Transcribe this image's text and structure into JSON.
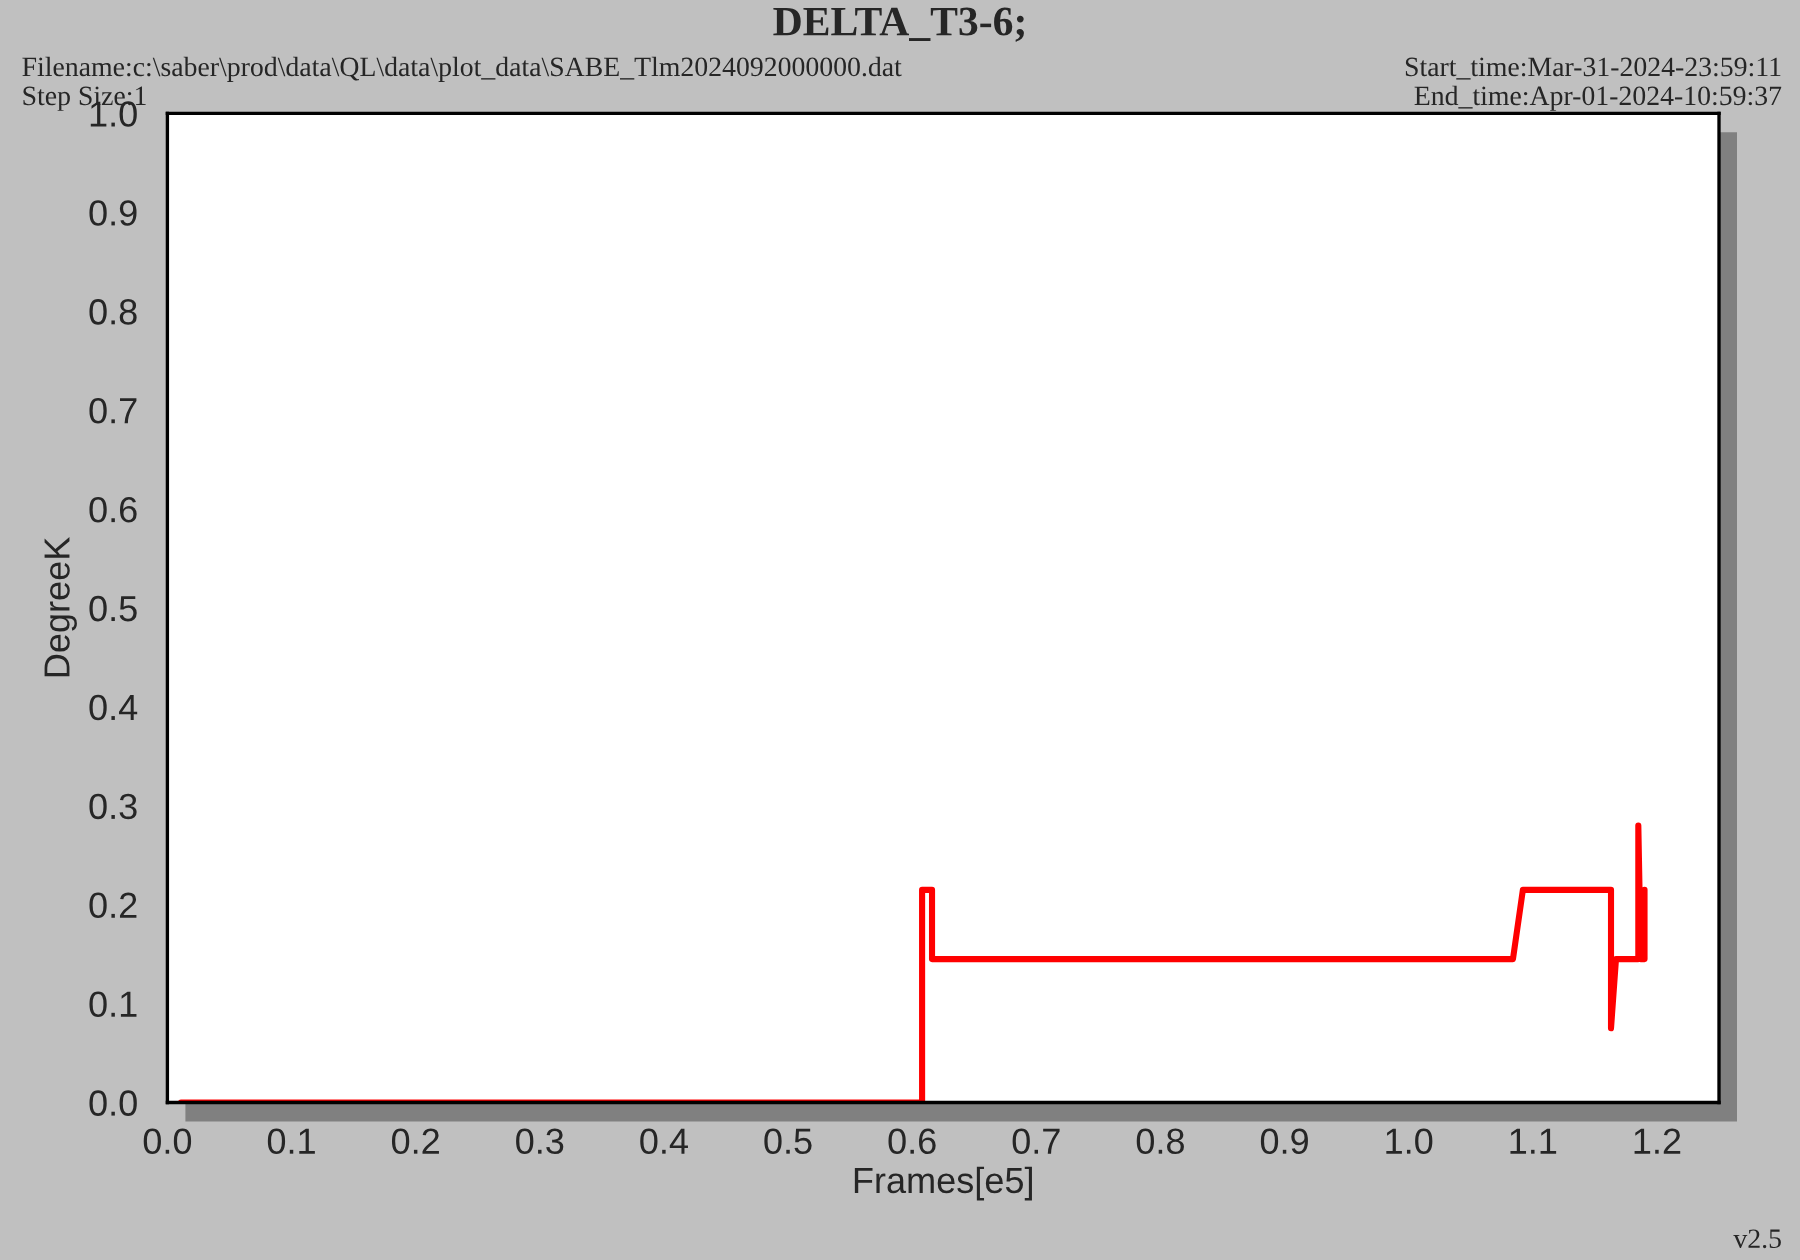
{
  "chart_data": {
    "type": "line",
    "title": "DELTA_T3-6;",
    "xlabel": "Frames[e5]",
    "ylabel": "DegreeK",
    "annotations": [
      "Filename:c:\\saber\\prod\\data\\QL\\data\\plot_data\\SABE_Tlm2024092000000.dat",
      "Step Size:1",
      "Start_time:Mar-31-2024-23:59:11",
      "End_time:Apr-01-2024-10:59:37",
      "v2.5"
    ],
    "series": [
      {
        "color": "#ff0000",
        "x": [
          0.011,
          0.608,
          0.608,
          0.616,
          0.616,
          1.084,
          1.092,
          1.163,
          1.163,
          1.167,
          1.185,
          1.185,
          1.187,
          1.189,
          1.19,
          1.19
        ],
        "values": [
          0.0,
          0.0,
          0.215,
          0.215,
          0.145,
          0.145,
          0.215,
          0.215,
          0.075,
          0.145,
          0.145,
          0.28,
          0.145,
          0.145,
          0.215,
          0.145
        ]
      }
    ],
    "xlim": [
      0.0,
      1.25
    ],
    "xticks": [
      {
        "value": 0.0,
        "label": "0.0"
      },
      0.1,
      0.2,
      0.3,
      0.4,
      0.5,
      0.6,
      0.7,
      0.8,
      0.9,
      {
        "value": 1.0,
        "label": "1.0"
      },
      1.1,
      1.2
    ],
    "ylim": [
      0.0,
      1.0
    ],
    "yticks": [
      {
        "value": 0.0,
        "label": "0.0"
      },
      0.1,
      0.2,
      0.3,
      0.4,
      0.5,
      0.6,
      0.7,
      0.8,
      0.9,
      {
        "value": 1.0,
        "label": "1.0"
      }
    ],
    "grid": false,
    "legend": false,
    "marker": "none",
    "line_style": "solid"
  }
}
